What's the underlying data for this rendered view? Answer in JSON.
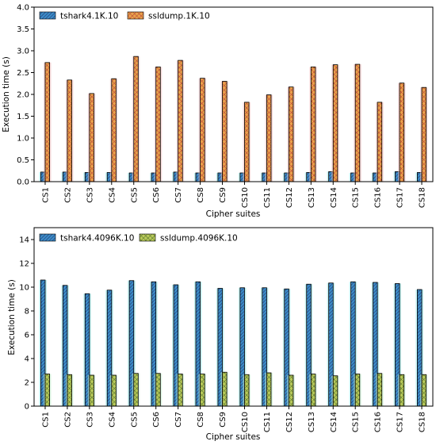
{
  "colors": {
    "series_a": "#3a8fc8",
    "series_a_hatch": "#2e3a7a",
    "series_a_glow": "#8fe3e6",
    "series_b": "#e8a24a",
    "series_b_hatch": "#b53a3a",
    "series_b_glow": "#f2c0c0",
    "series_b_bottom": "#b9c95a",
    "series_b_bottom_hatch": "#4a6a2a",
    "series_b_bottom_glow": "#c6f2d0"
  },
  "chart_data": [
    {
      "type": "bar",
      "xlabel": "Cipher suites",
      "ylabel": "Execution time (s)",
      "ylim": [
        0,
        4.0
      ],
      "yticks": [
        "0.0",
        "0.5",
        "1.0",
        "1.5",
        "2.0",
        "2.5",
        "3.0",
        "3.5",
        "4.0"
      ],
      "grid": false,
      "legend_position": "top-left",
      "categories": [
        "CS1",
        "CS2",
        "CS3",
        "CS4",
        "CS5",
        "CS6",
        "CS7",
        "CS8",
        "CS9",
        "CS10",
        "CS11",
        "CS12",
        "CS13",
        "CS14",
        "CS15",
        "CS16",
        "CS17",
        "CS18"
      ],
      "series": [
        {
          "name": "tshark4.1K.10",
          "values": [
            0.22,
            0.22,
            0.21,
            0.21,
            0.2,
            0.2,
            0.22,
            0.2,
            0.2,
            0.2,
            0.2,
            0.2,
            0.21,
            0.23,
            0.2,
            0.2,
            0.23,
            0.21
          ]
        },
        {
          "name": "ssldump.1K.10",
          "values": [
            2.73,
            2.33,
            2.02,
            2.36,
            2.87,
            2.63,
            2.78,
            2.37,
            2.3,
            1.82,
            1.99,
            2.17,
            2.63,
            2.68,
            2.69,
            1.82,
            2.26,
            2.16
          ]
        }
      ]
    },
    {
      "type": "bar",
      "xlabel": "Cipher suites",
      "ylabel": "Execution time (s)",
      "ylim": [
        0,
        15
      ],
      "yticks": [
        "0",
        "2",
        "4",
        "6",
        "8",
        "10",
        "12",
        "14"
      ],
      "grid": false,
      "legend_position": "top-left",
      "categories": [
        "CS1",
        "CS2",
        "CS3",
        "CS4",
        "CS5",
        "CS6",
        "CS7",
        "CS8",
        "CS9",
        "CS10",
        "CS11",
        "CS12",
        "CS13",
        "CS14",
        "CS15",
        "CS16",
        "CS17",
        "CS18"
      ],
      "series": [
        {
          "name": "tshark4.4096K.10",
          "values": [
            10.6,
            10.15,
            9.45,
            9.75,
            10.55,
            10.45,
            10.2,
            10.45,
            9.9,
            9.95,
            9.95,
            9.85,
            10.25,
            10.35,
            10.45,
            10.4,
            10.3,
            9.8
          ]
        },
        {
          "name": "ssldump.4096K.10",
          "values": [
            2.7,
            2.65,
            2.6,
            2.6,
            2.75,
            2.75,
            2.7,
            2.7,
            2.85,
            2.65,
            2.8,
            2.6,
            2.7,
            2.55,
            2.7,
            2.75,
            2.65,
            2.65
          ]
        }
      ]
    }
  ]
}
